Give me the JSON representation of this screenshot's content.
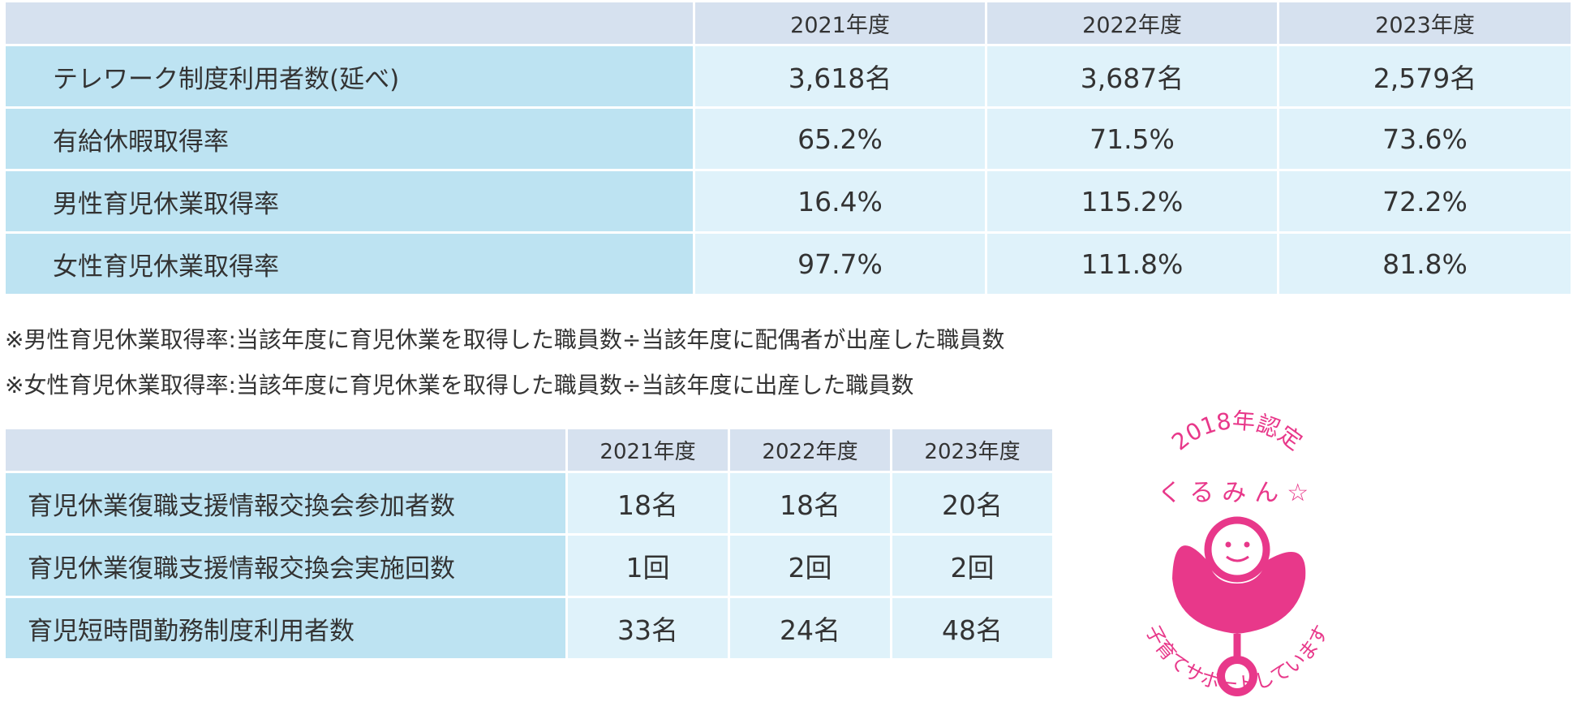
{
  "table1": {
    "headers": [
      "2021年度",
      "2022年度",
      "2023年度"
    ],
    "rows": [
      {
        "label": "テレワーク制度利用者数(延べ)",
        "values": [
          "3,618名",
          "3,687名",
          "2,579名"
        ]
      },
      {
        "label": "有給休暇取得率",
        "values": [
          "65.2%",
          "71.5%",
          "73.6%"
        ]
      },
      {
        "label": "男性育児休業取得率",
        "values": [
          "16.4%",
          "115.2%",
          "72.2%"
        ]
      },
      {
        "label": "女性育児休業取得率",
        "values": [
          "97.7%",
          "111.8%",
          "81.8%"
        ]
      }
    ]
  },
  "notes": [
    "※男性育児休業取得率:当該年度に育児休業を取得した職員数÷当該年度に配偶者が出産した職員数",
    "※女性育児休業取得率:当該年度に育児休業を取得した職員数÷当該年度に出産した職員数"
  ],
  "table2": {
    "headers": [
      "2021年度",
      "2022年度",
      "2023年度"
    ],
    "rows": [
      {
        "label": "育児休業復職支援情報交換会参加者数",
        "values": [
          "18名",
          "18名",
          "20名"
        ]
      },
      {
        "label": "育児休業復職支援情報交換会実施回数",
        "values": [
          "1回",
          "2回",
          "2回"
        ]
      },
      {
        "label": "育児短時間勤務制度利用者数",
        "values": [
          "33名",
          "24名",
          "48名"
        ]
      }
    ]
  },
  "logo": {
    "top_text": "2018年認定",
    "name_text": "くるみん☆",
    "bottom_text": "子育てサポートしています",
    "color": "#e8388a"
  }
}
